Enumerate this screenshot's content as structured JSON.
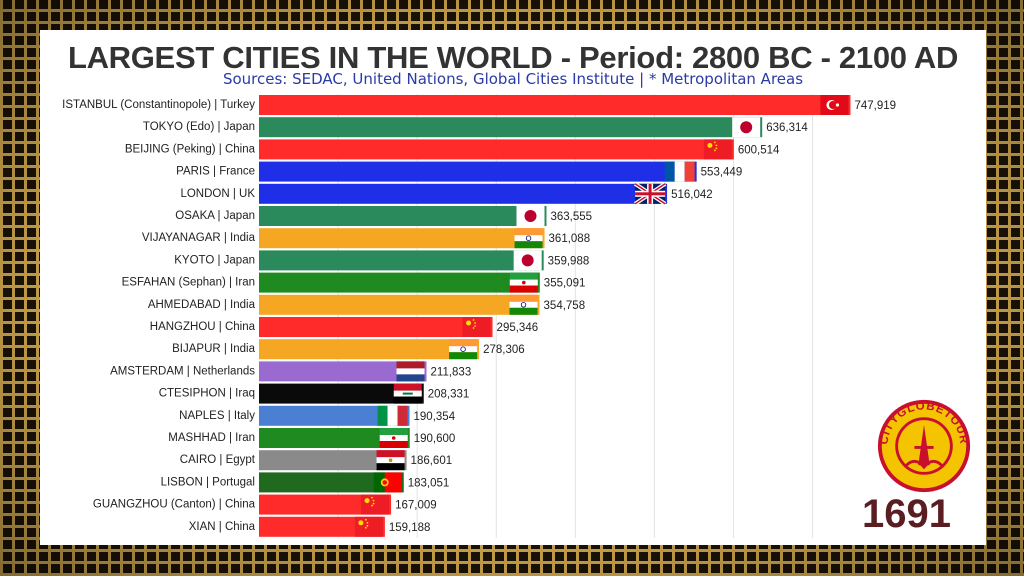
{
  "header": {
    "title": "LARGEST CITIES IN THE WORLD - Period: 2800 BC - 2100 AD",
    "subtitle": "Sources: SEDAC, United Nations, Global Cities Institute | * Metropolitan Areas"
  },
  "year_label": "1691",
  "logo": {
    "text": "CITYGLOBETOUR",
    "colors": {
      "ring": "#c8102e",
      "fill": "#f5c400"
    }
  },
  "chart_data": {
    "type": "bar",
    "orientation": "horizontal",
    "grid": true,
    "xlim": [
      0,
      760000
    ],
    "categories": [
      "ISTANBUL (Constantinopole) | Turkey",
      "TOKYO (Edo) | Japan",
      "BEIJING (Peking) | China",
      "PARIS | France",
      "LONDON | UK",
      "OSAKA | Japan",
      "VIJAYANAGAR | India",
      "KYOTO | Japan",
      "ESFAHAN (Sephan) | Iran",
      "AHMEDABAD | India",
      "HANGZHOU | China",
      "BIJAPUR | India",
      "AMSTERDAM | Netherlands",
      "CTESIPHON | Iraq",
      "NAPLES | Italy",
      "MASHHAD | Iran",
      "CAIRO | Egypt",
      "LISBON | Portugal",
      "GUANGZHOU (Canton) | China",
      "XIAN | China"
    ],
    "values": [
      747919,
      636314,
      600514,
      553449,
      516042,
      363555,
      361088,
      359988,
      355091,
      354758,
      295346,
      278306,
      211833,
      208331,
      190354,
      190600,
      186601,
      183051,
      167009,
      159188
    ],
    "value_labels": [
      "747,919",
      "636,314",
      "600,514",
      "553,449",
      "516,042",
      "363,555",
      "361,088",
      "359,988",
      "355,091",
      "354,758",
      "295,346",
      "278,306",
      "211,833",
      "208,331",
      "190,354",
      "190,600",
      "186,601",
      "183,051",
      "167,009",
      "159,188"
    ],
    "bar_colors": [
      "#ff2a2a",
      "#2a8a5c",
      "#ff2a2a",
      "#1f2fe8",
      "#1f2fe8",
      "#2a8a5c",
      "#f5a623",
      "#2a8a5c",
      "#1f8a1f",
      "#f5a623",
      "#ff2a2a",
      "#f5a623",
      "#9a6ad0",
      "#0a0a0a",
      "#4a7fd4",
      "#1f8a1f",
      "#8a8a8a",
      "#1f6a1f",
      "#ff2a2a",
      "#ff2a2a"
    ],
    "flags": [
      "turkey-flag",
      "japan-flag",
      "china-flag",
      "france-flag",
      "uk-flag",
      "japan-flag",
      "india-flag",
      "japan-flag",
      "iran-flag",
      "india-flag",
      "china-flag",
      "india-flag",
      "netherlands-flag",
      "iraq-flag",
      "italy-flag",
      "iran-flag",
      "egypt-flag",
      "portugal-flag",
      "china-flag",
      "china-flag"
    ]
  }
}
